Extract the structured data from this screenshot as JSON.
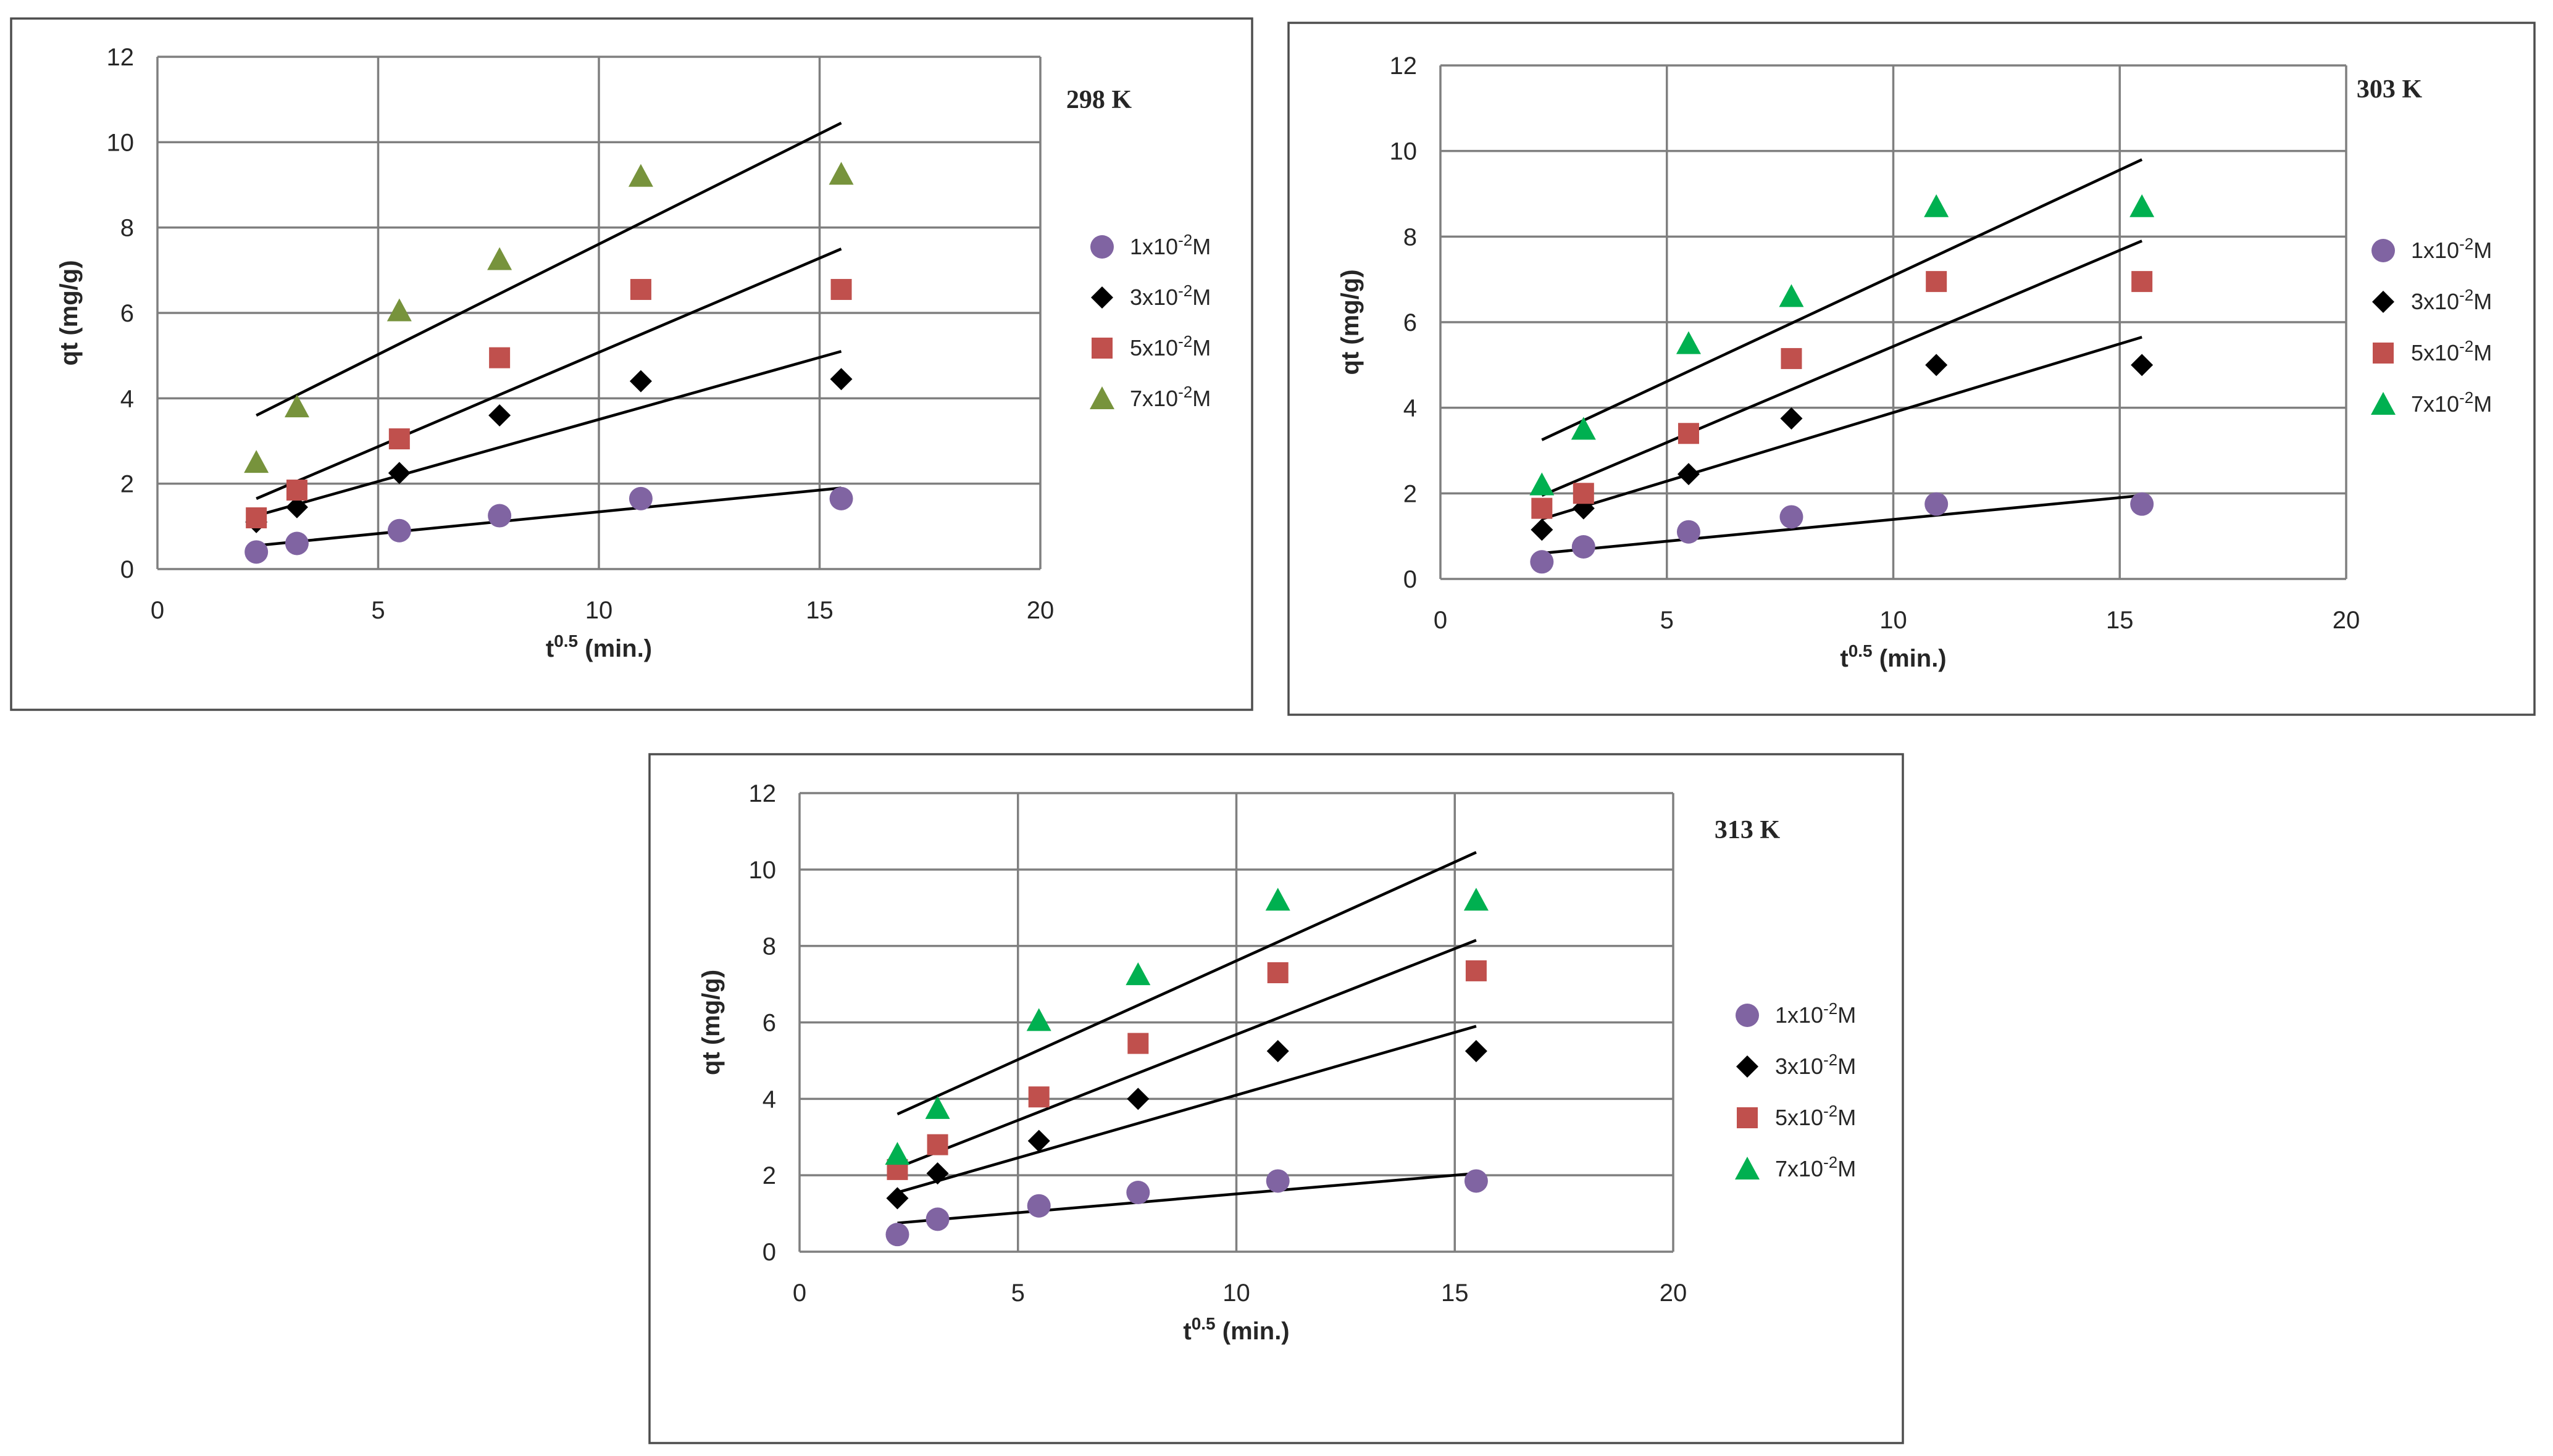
{
  "chart_data": [
    {
      "type": "scatter",
      "title": "298 K",
      "xlabel": "t0.5 (min.)",
      "xlabel_base": "t",
      "xlabel_sup": "0.5",
      "xlabel_rest": " (min.)",
      "ylabel": "qt (mg/g)",
      "xlim": [
        0,
        20
      ],
      "ylim": [
        0,
        12
      ],
      "xticks": [
        "0",
        "5",
        "10",
        "15",
        "20"
      ],
      "yticks": [
        "0",
        "2",
        "4",
        "6",
        "8",
        "10",
        "12"
      ],
      "x": [
        2.24,
        3.16,
        5.48,
        7.75,
        10.95,
        15.49
      ],
      "series": [
        {
          "name": "1x10-2M",
          "base": "1x10",
          "sup": "-2",
          "unit": "M",
          "marker": "circle",
          "color": "#8064a2",
          "values": [
            0.4,
            0.6,
            0.9,
            1.25,
            1.65,
            1.65
          ],
          "trend": [
            0.55,
            1.9
          ]
        },
        {
          "name": "3x10-2M",
          "base": "3x10",
          "sup": "-2",
          "unit": "M",
          "marker": "diamond",
          "color": "#000000",
          "values": [
            1.1,
            1.45,
            2.25,
            3.6,
            4.4,
            4.45
          ],
          "trend": [
            1.25,
            5.1
          ]
        },
        {
          "name": "5x10-2M",
          "base": "5x10",
          "sup": "-2",
          "unit": "M",
          "marker": "square",
          "color": "#c0504d",
          "values": [
            1.2,
            1.85,
            3.05,
            4.95,
            6.55,
            6.55
          ],
          "trend": [
            1.65,
            7.5
          ]
        },
        {
          "name": "7x10-2M",
          "base": "7x10",
          "sup": "-2",
          "unit": "M",
          "marker": "triangle",
          "color": "#77933c",
          "values": [
            2.5,
            3.8,
            6.05,
            7.25,
            9.2,
            9.25
          ],
          "trend": [
            3.6,
            10.45
          ]
        }
      ]
    },
    {
      "type": "scatter",
      "title": "303 K",
      "xlabel": "t0.5 (min.)",
      "xlabel_base": "t",
      "xlabel_sup": "0.5",
      "xlabel_rest": " (min.)",
      "ylabel": "qt (mg/g)",
      "xlim": [
        0,
        20
      ],
      "ylim": [
        0,
        12
      ],
      "xticks": [
        "0",
        "5",
        "10",
        "15",
        "20"
      ],
      "yticks": [
        "0",
        "2",
        "4",
        "6",
        "8",
        "10",
        "12"
      ],
      "x": [
        2.24,
        3.16,
        5.48,
        7.75,
        10.95,
        15.49
      ],
      "series": [
        {
          "name": "1x10-2M",
          "base": "1x10",
          "sup": "-2",
          "unit": "M",
          "marker": "circle",
          "color": "#8064a2",
          "values": [
            0.4,
            0.75,
            1.1,
            1.45,
            1.75,
            1.75
          ],
          "trend": [
            0.6,
            1.95
          ]
        },
        {
          "name": "3x10-2M",
          "base": "3x10",
          "sup": "-2",
          "unit": "M",
          "marker": "diamond",
          "color": "#000000",
          "values": [
            1.15,
            1.65,
            2.45,
            3.75,
            5.0,
            5.0
          ],
          "trend": [
            1.4,
            5.65
          ]
        },
        {
          "name": "5x10-2M",
          "base": "5x10",
          "sup": "-2",
          "unit": "M",
          "marker": "square",
          "color": "#c0504d",
          "values": [
            1.65,
            2.0,
            3.4,
            5.15,
            6.95,
            6.95
          ],
          "trend": [
            1.95,
            7.9
          ]
        },
        {
          "name": "7x10-2M",
          "base": "7x10",
          "sup": "-2",
          "unit": "M",
          "marker": "triangle",
          "color": "#00b050",
          "values": [
            2.2,
            3.5,
            5.5,
            6.6,
            8.7,
            8.7
          ],
          "trend": [
            3.25,
            9.8
          ]
        }
      ]
    },
    {
      "type": "scatter",
      "title": "313 K",
      "xlabel": "t0.5 (min.)",
      "xlabel_base": "t",
      "xlabel_sup": "0.5",
      "xlabel_rest": " (min.)",
      "ylabel": "qt (mg/g)",
      "xlim": [
        0,
        20
      ],
      "ylim": [
        0,
        12
      ],
      "xticks": [
        "0",
        "5",
        "10",
        "15",
        "20"
      ],
      "yticks": [
        "0",
        "2",
        "4",
        "6",
        "8",
        "10",
        "12"
      ],
      "x": [
        2.24,
        3.16,
        5.48,
        7.75,
        10.95,
        15.49
      ],
      "series": [
        {
          "name": "1x10-2M",
          "base": "1x10",
          "sup": "-2",
          "unit": "M",
          "marker": "circle",
          "color": "#8064a2",
          "values": [
            0.45,
            0.85,
            1.2,
            1.55,
            1.85,
            1.85
          ],
          "trend": [
            0.75,
            2.05
          ]
        },
        {
          "name": "3x10-2M",
          "base": "3x10",
          "sup": "-2",
          "unit": "M",
          "marker": "diamond",
          "color": "#000000",
          "values": [
            1.4,
            2.05,
            2.9,
            4.0,
            5.25,
            5.25
          ],
          "trend": [
            1.55,
            5.9
          ]
        },
        {
          "name": "5x10-2M",
          "base": "5x10",
          "sup": "-2",
          "unit": "M",
          "marker": "square",
          "color": "#c0504d",
          "values": [
            2.15,
            2.8,
            4.05,
            5.45,
            7.3,
            7.35
          ],
          "trend": [
            2.2,
            8.15
          ]
        },
        {
          "name": "7x10-2M",
          "base": "7x10",
          "sup": "-2",
          "unit": "M",
          "marker": "triangle",
          "color": "#00b050",
          "values": [
            2.55,
            3.75,
            6.05,
            7.25,
            9.2,
            9.2
          ],
          "trend": [
            3.6,
            10.45
          ]
        }
      ]
    }
  ]
}
